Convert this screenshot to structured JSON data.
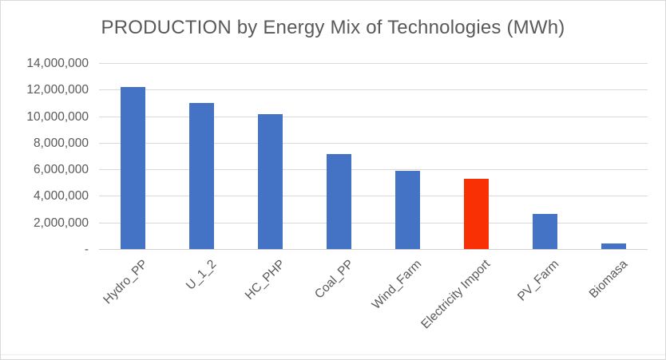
{
  "window": {
    "background": "#FFFFFF",
    "border_color": "#D9D9D9"
  },
  "chart_data": {
    "type": "bar",
    "title": "PRODUCTION by Energy Mix of Technologies (MWh)",
    "xlabel": "",
    "ylabel": "",
    "categories": [
      "Hydro_PP",
      "U_1_2",
      "HC_PHP",
      "Coal_PP",
      "Wind_Farm",
      "Electricity Import",
      "PV_Farm",
      "Biomasa"
    ],
    "values": [
      12200000,
      11000000,
      10150000,
      7150000,
      5900000,
      5300000,
      2650000,
      420000
    ],
    "bar_colors": [
      "#4472C4",
      "#4472C4",
      "#4472C4",
      "#4472C4",
      "#4472C4",
      "#FA3005",
      "#4472C4",
      "#4472C4"
    ],
    "highlight_index": 5,
    "ylim": [
      0,
      14000000
    ],
    "ytick_step": 2000000,
    "ytick_labels": [
      "-",
      "2,000,000",
      "4,000,000",
      "6,000,000",
      "8,000,000",
      "10,000,000",
      "12,000,000",
      "14,000,000"
    ],
    "grid": true,
    "legend": false,
    "colors": {
      "grid": "#D9D9D9",
      "axis_text": "#595959",
      "title_text": "#595959",
      "default_bar": "#4472C4",
      "highlight_bar": "#FA3005"
    }
  }
}
